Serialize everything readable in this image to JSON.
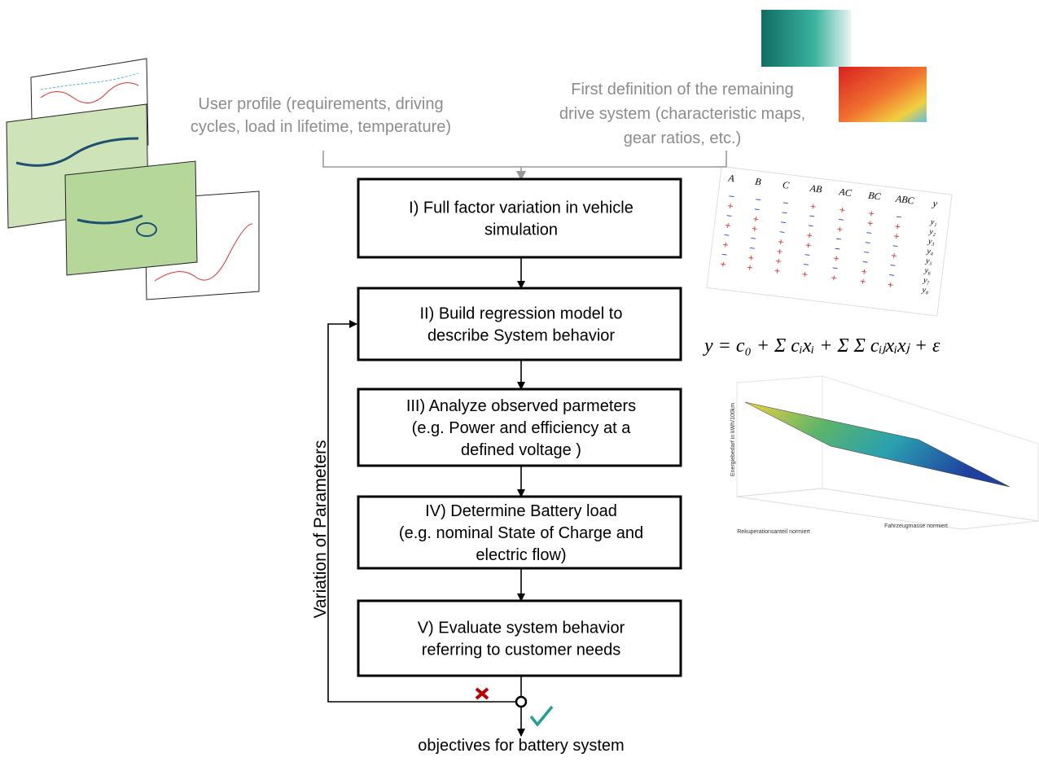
{
  "inputs": {
    "user_profile": [
      "User profile (requirements, driving",
      "cycles, load in lifetime, temperature)"
    ],
    "drive_system": [
      "First definition of the remaining",
      "drive system (characteristic maps,",
      "gear ratios, etc.)"
    ]
  },
  "steps": [
    {
      "lines": [
        "I) Full factor variation in vehicle",
        "simulation"
      ]
    },
    {
      "lines": [
        "II) Build regression model to",
        "describe System behavior"
      ]
    },
    {
      "lines": [
        "III) Analyze observed parmeters",
        "(e.g. Power and efficiency at a",
        "defined voltage )"
      ]
    },
    {
      "lines": [
        "IV) Determine Battery load",
        "(e.g. nominal State of Charge and",
        "electric flow)"
      ]
    },
    {
      "lines": [
        "V) Evaluate system behavior",
        "referring to customer needs"
      ]
    }
  ],
  "loop_label": "Variation of Parameters",
  "output": "objectives for battery system",
  "design_table": {
    "headers": [
      "A",
      "B",
      "C",
      "AB",
      "AC",
      "BC",
      "ABC"
    ],
    "response_header": "y",
    "responses": [
      "y₁",
      "y₂",
      "y₃",
      "y₄",
      "y₅",
      "y₆",
      "y₇",
      "y₈"
    ],
    "signs": [
      [
        "−",
        "−",
        "−",
        "+",
        "+",
        "+",
        "−"
      ],
      [
        "+",
        "−",
        "−",
        "−",
        "−",
        "+",
        "+"
      ],
      [
        "−",
        "+",
        "−",
        "−",
        "+",
        "−",
        "+"
      ],
      [
        "+",
        "+",
        "−",
        "+",
        "−",
        "−",
        "−"
      ],
      [
        "−",
        "−",
        "+",
        "+",
        "−",
        "−",
        "+"
      ],
      [
        "+",
        "−",
        "+",
        "−",
        "+",
        "−",
        "−"
      ],
      [
        "−",
        "+",
        "+",
        "−",
        "−",
        "+",
        "−"
      ],
      [
        "+",
        "+",
        "+",
        "+",
        "+",
        "+",
        "+"
      ]
    ]
  },
  "formula": "y = c₀ + Σ cᵢxᵢ + Σ Σ cᵢⱼxᵢxⱼ + ε",
  "surface_plot": {
    "z_label": "Energiebedarf in kWh/100km",
    "x_label": "Rekuperationsanteil normiert",
    "y_label": "Fahrzeugmasse normiert"
  }
}
